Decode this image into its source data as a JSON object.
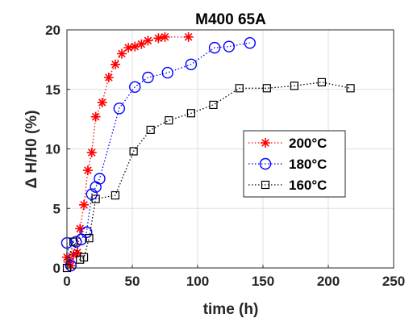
{
  "chart_data": {
    "type": "line",
    "title": "M400 65A",
    "xlabel": "time (h)",
    "ylabel": "Δ H/H0 (%)",
    "xlim": [
      0,
      250
    ],
    "ylim": [
      0,
      20
    ],
    "xticks": [
      "0",
      "50",
      "100",
      "150",
      "200",
      "250"
    ],
    "yticks": [
      "0",
      "5",
      "10",
      "15",
      "20"
    ],
    "grid": true,
    "legend_position": "right",
    "series": [
      {
        "name": "200°C",
        "color": "#ff0000",
        "marker": "asterisk",
        "x": [
          0,
          1,
          3,
          5,
          8,
          10,
          13,
          16,
          19,
          22,
          27,
          32,
          37,
          42,
          47,
          52,
          57,
          62,
          70,
          75,
          93
        ],
        "y": [
          0.9,
          0.5,
          0.2,
          1.1,
          1.3,
          3.3,
          5.3,
          8.2,
          9.7,
          12.7,
          13.9,
          16.0,
          17.1,
          18.0,
          18.5,
          18.6,
          18.8,
          19.1,
          19.3,
          19.4,
          19.4
        ]
      },
      {
        "name": "180°C",
        "color": "#0000ff",
        "marker": "circle",
        "x": [
          0,
          3,
          7,
          11,
          15,
          19,
          22,
          25,
          40,
          52,
          62,
          77,
          95,
          113,
          124,
          140
        ],
        "y": [
          2.1,
          0.2,
          2.2,
          2.4,
          3.0,
          6.2,
          6.8,
          7.5,
          13.4,
          15.2,
          16.0,
          16.4,
          17.1,
          18.5,
          18.6,
          18.9
        ]
      },
      {
        "name": "160°C",
        "color": "#000000",
        "marker": "square",
        "x": [
          0,
          5,
          10,
          13,
          17,
          22,
          37,
          51,
          64,
          78,
          95,
          112,
          132,
          153,
          174,
          195,
          217
        ],
        "y": [
          0.0,
          2.2,
          0.7,
          0.9,
          2.5,
          5.8,
          6.1,
          9.8,
          11.6,
          12.4,
          13.0,
          13.7,
          15.1,
          15.1,
          15.3,
          15.6,
          15.1
        ]
      }
    ]
  }
}
